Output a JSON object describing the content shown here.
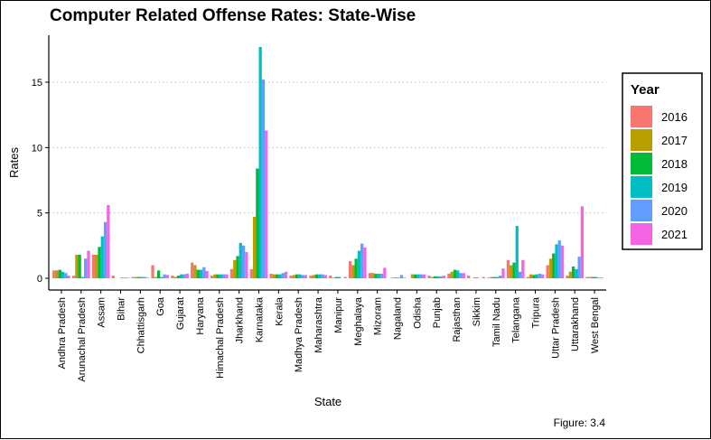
{
  "caption": "Figure: 3.4",
  "chart_data": {
    "type": "bar",
    "title": "Computer Related Offense Rates: State-Wise",
    "xlabel": "State",
    "ylabel": "Rates",
    "ylim": [
      0,
      18.5
    ],
    "yticks": [
      "0",
      "5",
      "10",
      "15"
    ],
    "grid": "horizontal dotted at major ticks",
    "legend": {
      "title": "Year",
      "placement": "right"
    },
    "categories": [
      "Andhra Pradesh",
      "Arunachal Pradesh",
      "Assam",
      "Bihar",
      "Chhattisgarh",
      "Goa",
      "Gujarat",
      "Haryana",
      "Himachal Pradesh",
      "Jharkhand",
      "Karnataka",
      "Kerala",
      "Madhya Pradesh",
      "Maharashtra",
      "Manipur",
      "Meghalaya",
      "Mizoram",
      "Nagaland",
      "Odisha",
      "Punjab",
      "Rajasthan",
      "Sikkim",
      "Tamil Nadu",
      "Telangana",
      "Tripura",
      "Uttar Pradesh",
      "Uttarakhand",
      "West Bengal"
    ],
    "series": [
      {
        "name": "2016",
        "color": "#F8766D",
        "values": [
          0.6,
          0.2,
          1.8,
          0.2,
          0.1,
          1.0,
          0.2,
          1.2,
          0.2,
          0.7,
          0.7,
          0.35,
          0.2,
          0.2,
          0.2,
          1.3,
          0.4,
          0.0,
          0.0,
          0.2,
          0.35,
          0.2,
          0.05,
          1.4,
          0.1,
          1.0,
          0.2,
          0.1
        ]
      },
      {
        "name": "2017",
        "color": "#B79F00",
        "values": [
          0.6,
          1.8,
          1.8,
          0.0,
          0.1,
          0.1,
          0.1,
          1.0,
          0.3,
          1.4,
          4.7,
          0.3,
          0.25,
          0.25,
          0.05,
          1.0,
          0.4,
          0.05,
          0.3,
          0.1,
          0.5,
          0.0,
          0.1,
          1.0,
          0.3,
          1.5,
          0.5,
          0.1
        ]
      },
      {
        "name": "2018",
        "color": "#00BA38",
        "values": [
          0.65,
          1.8,
          2.4,
          0.0,
          0.1,
          0.6,
          0.2,
          0.65,
          0.3,
          1.7,
          8.4,
          0.3,
          0.3,
          0.3,
          0.1,
          1.5,
          0.35,
          0.05,
          0.3,
          0.15,
          0.65,
          0.05,
          0.1,
          1.2,
          0.25,
          1.9,
          0.9,
          0.1
        ]
      },
      {
        "name": "2019",
        "color": "#00BFC4",
        "values": [
          0.5,
          0.1,
          3.2,
          0.05,
          0.1,
          0.1,
          0.3,
          0.65,
          0.3,
          2.7,
          17.7,
          0.3,
          0.3,
          0.3,
          0.1,
          2.1,
          0.35,
          0.05,
          0.3,
          0.15,
          0.6,
          0.05,
          0.1,
          4.0,
          0.3,
          2.6,
          0.7,
          0.1
        ]
      },
      {
        "name": "2020",
        "color": "#619CFF",
        "values": [
          0.4,
          1.5,
          4.3,
          0.05,
          0.1,
          0.3,
          0.3,
          0.85,
          0.3,
          2.5,
          15.2,
          0.4,
          0.25,
          0.3,
          0.0,
          2.65,
          0.35,
          0.25,
          0.3,
          0.15,
          0.4,
          0.0,
          0.2,
          0.5,
          0.35,
          2.9,
          1.65,
          0.05
        ]
      },
      {
        "name": "2021",
        "color": "#F564E3",
        "values": [
          0.2,
          2.1,
          5.6,
          0.05,
          0.05,
          0.25,
          0.35,
          0.55,
          0.3,
          2.0,
          11.3,
          0.5,
          0.25,
          0.25,
          0.1,
          2.35,
          0.8,
          0.05,
          0.3,
          0.2,
          0.4,
          0.1,
          0.75,
          1.4,
          0.3,
          2.5,
          5.5,
          0.05
        ]
      }
    ]
  }
}
